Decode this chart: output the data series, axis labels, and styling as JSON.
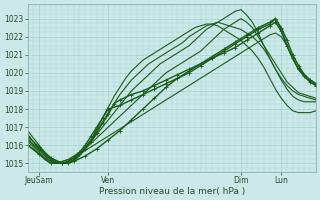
{
  "title": "",
  "xlabel": "Pression niveau de la mer( hPa )",
  "background_color": "#cce8e8",
  "grid_color": "#99cccc",
  "line_color": "#1a5c1a",
  "ylim": [
    1014.5,
    1023.8
  ],
  "xlim": [
    0,
    100
  ],
  "yticks": [
    1015,
    1016,
    1017,
    1018,
    1019,
    1020,
    1021,
    1022,
    1023
  ],
  "xtick_labels": [
    "JeuSam",
    "Ven",
    "Dim",
    "Lun"
  ],
  "xtick_positions": [
    4,
    28,
    74,
    88
  ],
  "lines": [
    {
      "x": [
        0,
        2,
        4,
        6,
        8,
        10,
        12,
        14,
        16,
        18,
        20,
        22,
        24,
        26,
        28,
        30,
        32,
        34,
        36,
        38,
        40,
        42,
        44,
        46,
        48,
        50,
        52,
        54,
        56,
        58,
        60,
        62,
        64,
        66,
        68,
        70,
        72,
        74,
        76,
        78,
        80,
        82,
        84,
        86,
        88,
        90,
        92,
        94,
        96,
        98,
        100
      ],
      "y": [
        1016.0,
        1015.8,
        1015.5,
        1015.2,
        1015.0,
        1015.0,
        1015.1,
        1015.2,
        1015.3,
        1015.5,
        1015.7,
        1015.9,
        1016.1,
        1016.3,
        1016.5,
        1016.7,
        1016.9,
        1017.1,
        1017.3,
        1017.5,
        1017.7,
        1017.9,
        1018.1,
        1018.3,
        1018.5,
        1018.7,
        1018.9,
        1019.1,
        1019.3,
        1019.5,
        1019.7,
        1019.9,
        1020.1,
        1020.3,
        1020.5,
        1020.7,
        1020.9,
        1021.1,
        1021.3,
        1021.5,
        1021.7,
        1021.9,
        1022.1,
        1022.2,
        1022.0,
        1021.5,
        1020.8,
        1020.2,
        1019.8,
        1019.5,
        1019.3
      ],
      "marker": null,
      "lw": 0.8
    },
    {
      "x": [
        0,
        2,
        4,
        6,
        8,
        10,
        12,
        14,
        16,
        18,
        20,
        22,
        24,
        26,
        28,
        30,
        32,
        34,
        36,
        38,
        40,
        42,
        44,
        46,
        48,
        50,
        52,
        54,
        56,
        58,
        60,
        62,
        64,
        66,
        68,
        70,
        72,
        74,
        76,
        78,
        80,
        82,
        84,
        86,
        88,
        90,
        92,
        94,
        96,
        98,
        100
      ],
      "y": [
        1016.2,
        1015.9,
        1015.6,
        1015.3,
        1015.1,
        1015.0,
        1015.1,
        1015.2,
        1015.4,
        1015.6,
        1015.8,
        1016.1,
        1016.4,
        1016.7,
        1017.0,
        1017.3,
        1017.6,
        1017.9,
        1018.2,
        1018.5,
        1018.8,
        1019.1,
        1019.4,
        1019.7,
        1020.0,
        1020.2,
        1020.4,
        1020.6,
        1020.8,
        1021.0,
        1021.2,
        1021.5,
        1021.8,
        1022.1,
        1022.4,
        1022.6,
        1022.8,
        1023.0,
        1022.8,
        1022.5,
        1022.0,
        1021.5,
        1021.0,
        1020.5,
        1020.0,
        1019.5,
        1019.2,
        1018.9,
        1018.8,
        1018.7,
        1018.6
      ],
      "marker": null,
      "lw": 0.8
    },
    {
      "x": [
        0,
        2,
        4,
        6,
        8,
        10,
        12,
        14,
        16,
        18,
        20,
        22,
        24,
        26,
        28,
        30,
        32,
        34,
        36,
        38,
        40,
        42,
        44,
        46,
        48,
        50,
        52,
        54,
        56,
        58,
        60,
        62,
        64,
        66,
        68,
        70,
        72,
        74,
        76,
        78,
        80,
        82,
        84,
        86,
        88,
        90,
        92,
        94,
        96,
        98,
        100
      ],
      "y": [
        1016.4,
        1016.0,
        1015.7,
        1015.4,
        1015.1,
        1015.0,
        1015.0,
        1015.1,
        1015.3,
        1015.5,
        1015.8,
        1016.2,
        1016.6,
        1017.0,
        1017.4,
        1017.8,
        1018.2,
        1018.6,
        1019.0,
        1019.3,
        1019.6,
        1019.9,
        1020.2,
        1020.5,
        1020.7,
        1020.9,
        1021.1,
        1021.3,
        1021.5,
        1021.8,
        1022.1,
        1022.4,
        1022.6,
        1022.8,
        1023.0,
        1023.2,
        1023.4,
        1023.5,
        1023.2,
        1022.8,
        1022.2,
        1021.5,
        1020.8,
        1020.2,
        1019.7,
        1019.3,
        1019.0,
        1018.8,
        1018.7,
        1018.6,
        1018.5
      ],
      "marker": null,
      "lw": 0.8
    },
    {
      "x": [
        0,
        2,
        4,
        6,
        8,
        10,
        12,
        14,
        16,
        18,
        20,
        22,
        24,
        26,
        28,
        30,
        32,
        34,
        36,
        38,
        40,
        42,
        44,
        46,
        48,
        50,
        52,
        54,
        56,
        58,
        60,
        62,
        64,
        66,
        68,
        70,
        72,
        74,
        76,
        78,
        80,
        82,
        84,
        86,
        88,
        90,
        92,
        94,
        96,
        98,
        100
      ],
      "y": [
        1016.6,
        1016.2,
        1015.8,
        1015.5,
        1015.2,
        1015.0,
        1015.0,
        1015.0,
        1015.2,
        1015.5,
        1015.9,
        1016.3,
        1016.8,
        1017.3,
        1017.8,
        1018.3,
        1018.8,
        1019.2,
        1019.6,
        1019.9,
        1020.2,
        1020.5,
        1020.7,
        1020.9,
        1021.1,
        1021.3,
        1021.5,
        1021.7,
        1022.0,
        1022.2,
        1022.4,
        1022.6,
        1022.7,
        1022.8,
        1022.7,
        1022.6,
        1022.5,
        1022.4,
        1022.2,
        1022.0,
        1021.7,
        1021.3,
        1020.8,
        1020.2,
        1019.6,
        1019.1,
        1018.7,
        1018.5,
        1018.4,
        1018.4,
        1018.4
      ],
      "marker": null,
      "lw": 0.8
    },
    {
      "x": [
        0,
        2,
        4,
        6,
        8,
        10,
        12,
        14,
        16,
        18,
        20,
        22,
        24,
        26,
        28,
        30,
        32,
        34,
        36,
        38,
        40,
        42,
        44,
        46,
        48,
        50,
        52,
        54,
        56,
        58,
        60,
        62,
        64,
        66,
        68,
        70,
        72,
        74,
        76,
        78,
        80,
        82,
        84,
        86,
        88,
        90,
        92,
        94,
        96,
        98,
        100
      ],
      "y": [
        1016.8,
        1016.4,
        1016.0,
        1015.6,
        1015.3,
        1015.1,
        1015.0,
        1015.0,
        1015.1,
        1015.4,
        1015.8,
        1016.3,
        1016.9,
        1017.5,
        1018.1,
        1018.7,
        1019.2,
        1019.7,
        1020.1,
        1020.4,
        1020.7,
        1020.9,
        1021.1,
        1021.3,
        1021.5,
        1021.7,
        1021.9,
        1022.1,
        1022.3,
        1022.5,
        1022.6,
        1022.7,
        1022.7,
        1022.6,
        1022.4,
        1022.2,
        1022.0,
        1021.8,
        1021.5,
        1021.2,
        1020.8,
        1020.3,
        1019.7,
        1019.1,
        1018.6,
        1018.2,
        1017.9,
        1017.8,
        1017.8,
        1017.8,
        1017.9
      ],
      "marker": null,
      "lw": 0.8
    },
    {
      "x": [
        0,
        4,
        8,
        12,
        16,
        20,
        24,
        28,
        32,
        36,
        40,
        44,
        48,
        52,
        56,
        60,
        64,
        68,
        72,
        76,
        80,
        84,
        86,
        88,
        90,
        92,
        94,
        96,
        98,
        100
      ],
      "y": [
        1016.3,
        1015.8,
        1015.2,
        1015.0,
        1015.1,
        1015.4,
        1015.8,
        1016.3,
        1016.8,
        1017.4,
        1018.0,
        1018.6,
        1019.2,
        1019.7,
        1020.1,
        1020.5,
        1020.9,
        1021.3,
        1021.7,
        1022.1,
        1022.5,
        1022.8,
        1023.0,
        1022.5,
        1021.8,
        1021.0,
        1020.4,
        1019.9,
        1019.6,
        1019.4
      ],
      "marker": "+",
      "lw": 1.0,
      "ms": 2.5
    },
    {
      "x": [
        0,
        4,
        8,
        12,
        14,
        16,
        18,
        20,
        22,
        24,
        26,
        28,
        30,
        32,
        36,
        40,
        44,
        48,
        52,
        56,
        60,
        64,
        68,
        72,
        76,
        80,
        84,
        86,
        88,
        90,
        92,
        94,
        96,
        98,
        100
      ],
      "y": [
        1016.5,
        1015.9,
        1015.3,
        1015.0,
        1015.0,
        1015.2,
        1015.5,
        1015.8,
        1016.2,
        1016.7,
        1017.2,
        1017.7,
        1018.3,
        1018.5,
        1018.8,
        1019.0,
        1019.3,
        1019.6,
        1019.9,
        1020.2,
        1020.5,
        1020.8,
        1021.1,
        1021.4,
        1021.8,
        1022.2,
        1022.6,
        1022.8,
        1022.3,
        1021.5,
        1020.8,
        1020.2,
        1019.8,
        1019.5,
        1019.3
      ],
      "marker": "+",
      "lw": 1.0,
      "ms": 2.5
    },
    {
      "x": [
        0,
        4,
        8,
        12,
        14,
        16,
        18,
        20,
        22,
        24,
        26,
        28,
        32,
        36,
        40,
        44,
        48,
        52,
        56,
        60,
        64,
        68,
        72,
        76,
        80,
        84,
        86,
        88,
        90,
        92,
        94,
        98,
        100
      ],
      "y": [
        1016.0,
        1015.5,
        1015.0,
        1015.0,
        1015.1,
        1015.3,
        1015.6,
        1016.0,
        1016.5,
        1017.0,
        1017.5,
        1018.0,
        1018.2,
        1018.5,
        1018.8,
        1019.1,
        1019.4,
        1019.7,
        1020.0,
        1020.4,
        1020.8,
        1021.2,
        1021.6,
        1022.0,
        1022.4,
        1022.7,
        1023.0,
        1022.4,
        1021.5,
        1020.8,
        1020.2,
        1019.6,
        1019.4
      ],
      "marker": "+",
      "lw": 1.0,
      "ms": 2.5
    }
  ]
}
